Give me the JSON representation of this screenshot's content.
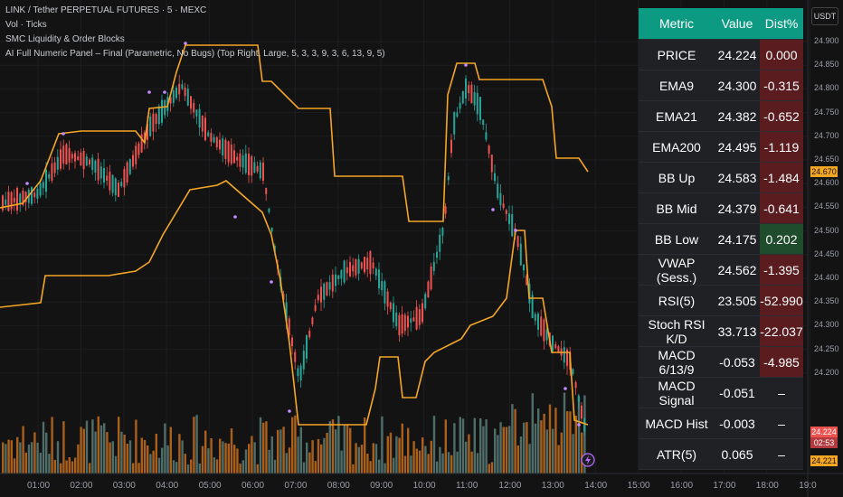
{
  "legend": {
    "line1": "LINK / Tether PERPETUAL FUTURES · 5 · MEXC",
    "line2": "Vol · Ticks",
    "line3": "SMC Liquidity & Order Blocks",
    "line4": "AI Full Numeric Panel – Final (Parametric, No Bugs) (Top Right, Large, 5, 3, 3, 9, 3, 6, 13, 9, 5)"
  },
  "panel": {
    "headers": [
      "Metric",
      "Value",
      "Dist%"
    ],
    "rows": [
      {
        "metric": "PRICE",
        "value": "24.224",
        "dist": "0.000",
        "tone": "zero"
      },
      {
        "metric": "EMA9",
        "value": "24.300",
        "dist": "-0.315",
        "tone": "neg"
      },
      {
        "metric": "EMA21",
        "value": "24.382",
        "dist": "-0.652",
        "tone": "neg"
      },
      {
        "metric": "EMA200",
        "value": "24.495",
        "dist": "-1.119",
        "tone": "neg"
      },
      {
        "metric": "BB Up",
        "value": "24.583",
        "dist": "-1.484",
        "tone": "neg"
      },
      {
        "metric": "BB Mid",
        "value": "24.379",
        "dist": "-0.641",
        "tone": "neg"
      },
      {
        "metric": "BB Low",
        "value": "24.175",
        "dist": "0.202",
        "tone": "pos"
      },
      {
        "metric": "VWAP (Sess.)",
        "value": "24.562",
        "dist": "-1.395",
        "tone": "neg"
      },
      {
        "metric": "RSI(5)",
        "value": "23.505",
        "dist": "-52.990",
        "tone": "neg"
      },
      {
        "metric": "Stoch RSI K/D",
        "value": "33.713",
        "dist": "-22.037",
        "tone": "neg"
      },
      {
        "metric": "MACD 6/13/9",
        "value": "-0.053",
        "dist": "-4.985",
        "tone": "neg"
      },
      {
        "metric": "MACD Signal",
        "value": "-0.051",
        "dist": "–",
        "tone": "none"
      },
      {
        "metric": "MACD Hist",
        "value": "-0.003",
        "dist": "–",
        "tone": "none"
      },
      {
        "metric": "ATR(5)",
        "value": "0.065",
        "dist": "–",
        "tone": "none"
      }
    ]
  },
  "currency_button": "USDT",
  "price_axis": [
    "24.900",
    "24.850",
    "24.800",
    "24.750",
    "24.700",
    "24.650",
    "24.600",
    "24.550",
    "24.500",
    "24.450",
    "24.400",
    "24.350",
    "24.300",
    "24.250",
    "24.200"
  ],
  "price_tags": {
    "upper": "24.670",
    "current": "24.224",
    "countdown": "02:53",
    "lower": "24.221"
  },
  "time_axis": [
    "01:00",
    "02:00",
    "03:00",
    "04:00",
    "05:00",
    "06:00",
    "07:00",
    "08:00",
    "09:00",
    "10:00",
    "11:00",
    "12:00",
    "13:00",
    "14:00",
    "15:00",
    "16:00",
    "17:00",
    "18:00",
    "19:0"
  ],
  "colors": {
    "background": "#131313",
    "bull": "#26a69a",
    "bear": "#ef5350",
    "orange_line": "#f5a623",
    "panel_header": "#0c9a82",
    "neg_cell": "#5a1c1f",
    "pos_cell": "#1f4c2c"
  }
}
